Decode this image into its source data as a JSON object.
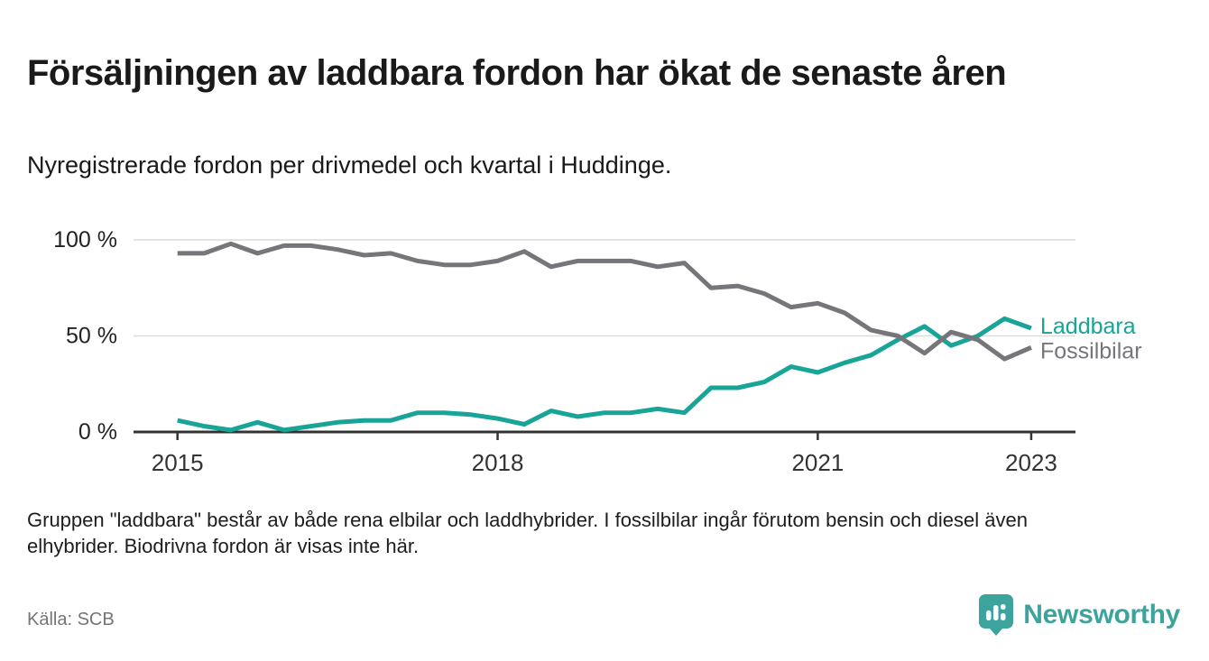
{
  "header": {
    "title": "Försäljningen av laddbara fordon har ökat de senaste åren",
    "subtitle": "Nyregistrerade fordon per drivmedel och kvartal i Huddinge."
  },
  "chart_data": {
    "type": "line",
    "unit": "%",
    "grid": "horizontal",
    "ylim": [
      0,
      100
    ],
    "legend_position": "right-of-line-end",
    "quarters": [
      "2015K1",
      "2015K2",
      "2015K3",
      "2015K4",
      "2016K1",
      "2016K2",
      "2016K3",
      "2016K4",
      "2017K1",
      "2017K2",
      "2017K3",
      "2017K4",
      "2018K1",
      "2018K2",
      "2018K3",
      "2018K4",
      "2019K1",
      "2019K2",
      "2019K3",
      "2019K4",
      "2020K1",
      "2020K2",
      "2020K3",
      "2020K4",
      "2021K1",
      "2021K2",
      "2021K3",
      "2021K4",
      "2022K1",
      "2022K2",
      "2022K3",
      "2022K4",
      "2023K1"
    ],
    "series": [
      {
        "id": "laddbara",
        "name": "Laddbara",
        "color": "#18a496",
        "values": [
          6,
          3,
          1,
          5,
          1,
          3,
          5,
          6,
          6,
          10,
          10,
          9,
          7,
          4,
          11,
          8,
          10,
          10,
          12,
          10,
          23,
          23,
          26,
          34,
          31,
          36,
          40,
          48,
          55,
          45,
          50,
          59,
          54
        ]
      },
      {
        "id": "fossilbilar",
        "name": "Fossilbilar",
        "color": "#76757a",
        "values": [
          93,
          93,
          98,
          93,
          97,
          97,
          95,
          92,
          93,
          89,
          87,
          87,
          89,
          94,
          86,
          89,
          89,
          89,
          86,
          88,
          75,
          76,
          72,
          65,
          67,
          62,
          53,
          50,
          41,
          52,
          48,
          38,
          44
        ]
      }
    ],
    "y_ticks": [
      {
        "label": "0 %",
        "value": 0
      },
      {
        "label": "50 %",
        "value": 50
      },
      {
        "label": "100 %",
        "value": 100
      }
    ],
    "x_ticks": [
      {
        "label": "2015",
        "index": 0
      },
      {
        "label": "2018",
        "index": 12
      },
      {
        "label": "2021",
        "index": 24
      },
      {
        "label": "2023",
        "index": 32
      }
    ]
  },
  "footer": {
    "note": "Gruppen \"laddbara\" består av både rena elbilar och laddhybrider. I fossilbilar ingår förutom bensin och diesel även elhybrider. Biodrivna fordon är visas inte här.",
    "source": "Källa: SCB",
    "brand": "Newsworthy"
  }
}
